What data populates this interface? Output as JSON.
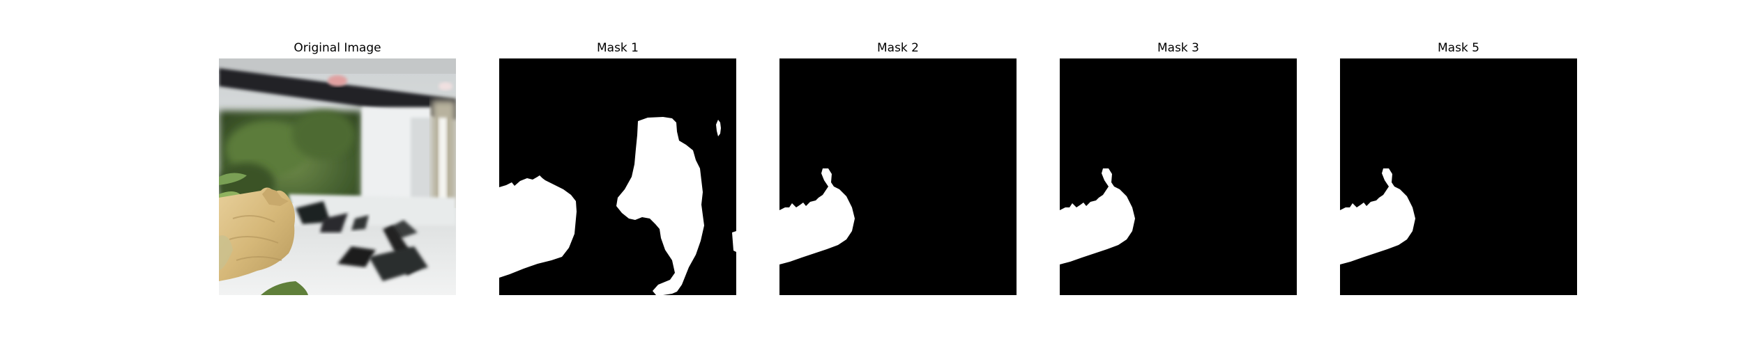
{
  "figure": {
    "panels": [
      {
        "title": "Original Image"
      },
      {
        "title": "Mask 1"
      },
      {
        "title": "Mask 2"
      },
      {
        "title": "Mask 3"
      },
      {
        "title": "Mask 5"
      }
    ]
  },
  "colors": {
    "mask_background": "#000000",
    "mask_foreground": "#ffffff"
  }
}
